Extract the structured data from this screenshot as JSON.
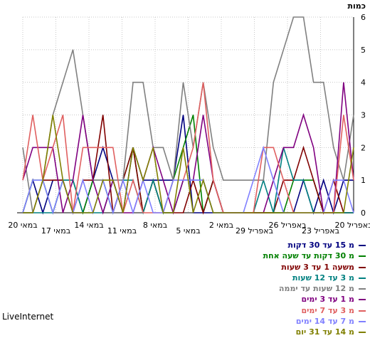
{
  "chart_data": {
    "type": "line",
    "ylabel": "כמות",
    "ylim": [
      0,
      6
    ],
    "yticks": [
      0,
      1,
      2,
      3,
      4,
      5,
      6
    ],
    "grid": true,
    "x_dir": "right-to-left",
    "x_tick_labels": [
      "20 באפריל",
      "23 באפריל",
      "26 באפריל",
      "29 באפריל",
      "2 במאי",
      "5 במאי",
      "8 במאי",
      "11 במאי",
      "14 במאי",
      "17 במאי",
      "20 במאי"
    ],
    "legend_position": "bottom-right",
    "series": [
      {
        "name": "מ 15 עד 30 דקות",
        "color": "#000080",
        "values": [
          0,
          1,
          0,
          1,
          1,
          0,
          0,
          1,
          2,
          1,
          0,
          2,
          1,
          1,
          1,
          1,
          3,
          0,
          0,
          0,
          0,
          0,
          0,
          0,
          0,
          0,
          0,
          0,
          1,
          0,
          1,
          0,
          1,
          1
        ]
      },
      {
        "name": "מ 30 דקות עד שעה אחת",
        "color": "#008000",
        "values": [
          0,
          1,
          1,
          0,
          1,
          1,
          0,
          1,
          1,
          0,
          1,
          2,
          0,
          1,
          0,
          1,
          2,
          3,
          0,
          1,
          0,
          0,
          0,
          0,
          0,
          0,
          0,
          1,
          1,
          1,
          0,
          0,
          0,
          0
        ]
      },
      {
        "name": "משעה 1 עד 3 שעות",
        "color": "#800000",
        "values": [
          0,
          0,
          1,
          1,
          1,
          0,
          1,
          1,
          3,
          0,
          1,
          2,
          0,
          1,
          0,
          0,
          0,
          1,
          0,
          1,
          0,
          0,
          0,
          0,
          0,
          0,
          1,
          1,
          2,
          1,
          0,
          1,
          0,
          0
        ]
      },
      {
        "name": "מ 3 עד 12 שעות",
        "color": "#008080",
        "values": [
          0,
          0,
          0,
          0,
          1,
          1,
          0,
          0,
          0,
          1,
          1,
          1,
          0,
          1,
          0,
          0,
          1,
          1,
          1,
          0,
          0,
          0,
          0,
          0,
          1,
          0,
          2,
          1,
          1,
          0,
          0,
          0,
          0,
          0
        ]
      },
      {
        "name": "מ 12 שעות עד יממה",
        "color": "#808080",
        "values": [
          2,
          0,
          1,
          3,
          4,
          5,
          3,
          1,
          1,
          1,
          1,
          4,
          4,
          2,
          2,
          1,
          4,
          2,
          4,
          2,
          1,
          1,
          1,
          1,
          1,
          4,
          5,
          6,
          6,
          4,
          4,
          2,
          1,
          3
        ]
      },
      {
        "name": "מ 1 עד 3 ימים",
        "color": "#800080",
        "values": [
          1,
          2,
          2,
          2,
          0,
          1,
          3,
          1,
          0,
          1,
          0,
          0,
          1,
          2,
          1,
          0,
          1,
          1,
          3,
          1,
          0,
          0,
          0,
          0,
          0,
          1,
          2,
          2,
          3,
          2,
          0,
          0,
          4,
          1
        ]
      },
      {
        "name": "מ 3 עד 7 ימים",
        "color": "#e06060",
        "values": [
          1,
          3,
          1,
          2,
          3,
          0,
          2,
          2,
          2,
          2,
          0,
          1,
          0,
          0,
          0,
          1,
          1,
          2,
          4,
          1,
          0,
          0,
          0,
          0,
          2,
          2,
          1,
          0,
          0,
          0,
          0,
          0,
          3,
          1
        ]
      },
      {
        "name": "מ 7 עד 14 ימים",
        "color": "#8080ff",
        "values": [
          0,
          1,
          1,
          0,
          1,
          0,
          1,
          0,
          1,
          0,
          1,
          0,
          1,
          0,
          0,
          1,
          1,
          1,
          1,
          0,
          0,
          0,
          0,
          1,
          2,
          1,
          0,
          0,
          0,
          0,
          0,
          1,
          1,
          0
        ]
      },
      {
        "name": "מ 14 עד 31 יום",
        "color": "#808000",
        "values": [
          0,
          0,
          1,
          3,
          1,
          0,
          0,
          0,
          1,
          1,
          0,
          2,
          1,
          2,
          0,
          0,
          2,
          0,
          1,
          0,
          0,
          0,
          0,
          0,
          0,
          0,
          0,
          0,
          0,
          0,
          0,
          0,
          0,
          2
        ]
      }
    ]
  },
  "brand": "LiveInternet"
}
